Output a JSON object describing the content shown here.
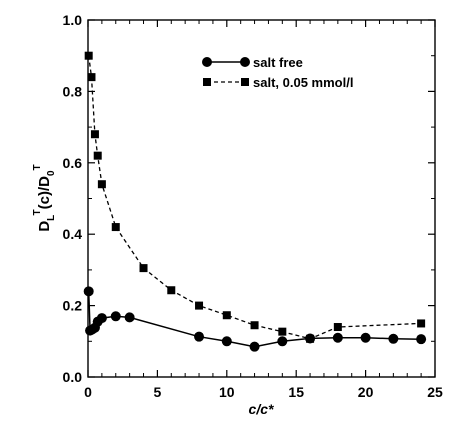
{
  "chart_data": {
    "type": "line",
    "xlabel": "c/c*",
    "ylabel": {
      "parts": [
        "D",
        "L",
        "T",
        "(c)/D",
        "0",
        "T"
      ]
    },
    "xlim": [
      0,
      25
    ],
    "ylim": [
      0,
      1.0
    ],
    "x_ticks": [
      0,
      5,
      10,
      15,
      20,
      25
    ],
    "x_tick_labels": [
      "0",
      "5",
      "10",
      "15",
      "20",
      "25"
    ],
    "y_ticks": [
      0,
      0.2,
      0.4,
      0.6,
      0.8,
      1.0
    ],
    "y_tick_labels": [
      "0.0",
      "0.2",
      "0.4",
      "0.6",
      "0.8",
      "1.0"
    ],
    "grid": false,
    "legend_position": "top-right",
    "series": [
      {
        "name": "salt free",
        "marker": "circle",
        "line": "solid",
        "color": "#000000",
        "x": [
          0.05,
          0.15,
          0.3,
          0.5,
          0.7,
          1.0,
          2.0,
          3.0,
          8.0,
          10.0,
          12.0,
          14.0,
          16.0,
          18.0,
          20.0,
          22.0,
          24.0
        ],
        "y": [
          0.24,
          0.13,
          0.133,
          0.138,
          0.155,
          0.165,
          0.17,
          0.167,
          0.113,
          0.1,
          0.085,
          0.1,
          0.108,
          0.11,
          0.11,
          0.107,
          0.106
        ]
      },
      {
        "name": "salt, 0.05 mmol/l",
        "marker": "square",
        "line": "dashed",
        "color": "#000000",
        "x": [
          0.05,
          0.25,
          0.5,
          0.7,
          1.0,
          2.0,
          4.0,
          6.0,
          8.0,
          10.0,
          12.0,
          14.0,
          16.0,
          18.0,
          24.0
        ],
        "y": [
          0.9,
          0.84,
          0.68,
          0.62,
          0.54,
          0.42,
          0.305,
          0.243,
          0.2,
          0.173,
          0.145,
          0.127,
          0.107,
          0.14,
          0.15
        ]
      }
    ]
  }
}
